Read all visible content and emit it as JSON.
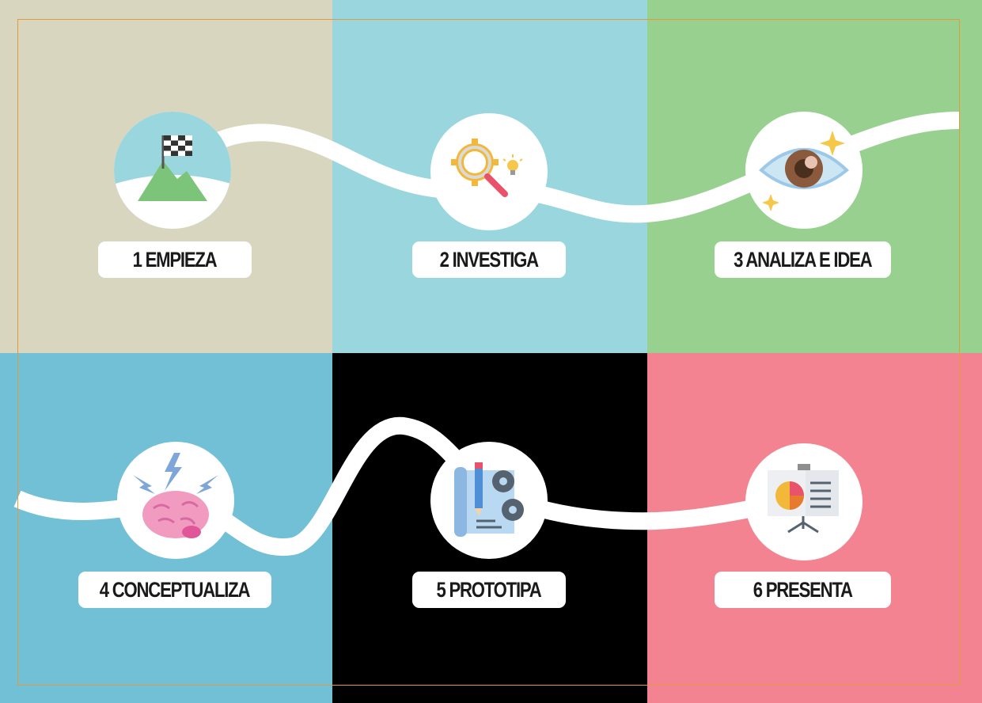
{
  "colors": {
    "panel_1": "#D8D6BE",
    "panel_2": "#9AD6DE",
    "panel_3": "#98D090",
    "panel_4": "#72C0D6",
    "panel_5": "#000000",
    "panel_6": "#F38391",
    "frame": "#E39A3F",
    "road": "#FFFFFF"
  },
  "steps": [
    {
      "label": "1 EMPIEZA",
      "icon": "mountain-flag-icon"
    },
    {
      "label": "2 INVESTIGA",
      "icon": "gear-magnifier-bulb-icon"
    },
    {
      "label": "3 ANALIZA E IDEA",
      "icon": "eye-sparkle-icon"
    },
    {
      "label": "4 CONCEPTUALIZA",
      "icon": "brain-lightning-icon"
    },
    {
      "label": "5 PROTOTIPA",
      "icon": "blueprint-gears-icon"
    },
    {
      "label": "6 PRESENTA",
      "icon": "presentation-board-icon"
    }
  ]
}
